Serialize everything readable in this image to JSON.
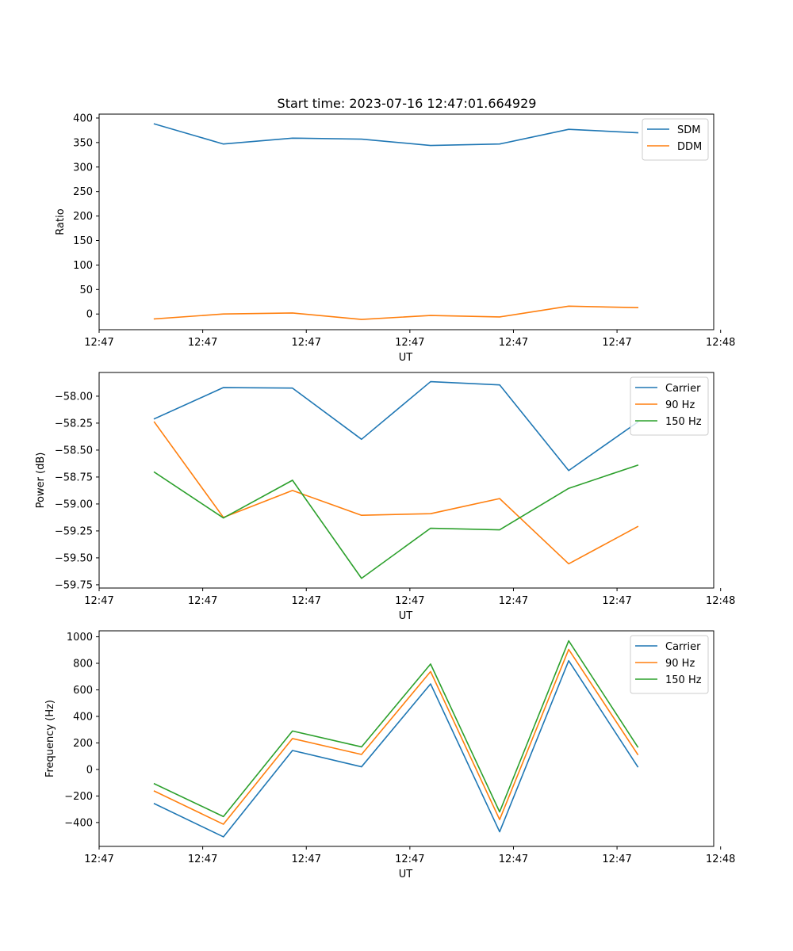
{
  "figure": {
    "title": "Start time: 2023-07-16 12:47:01.664929"
  },
  "chart_data": [
    {
      "type": "line",
      "title": "Start time: 2023-07-16 12:47:01.664929",
      "xlabel": "UT",
      "ylabel": "Ratio",
      "x": [
        1,
        2,
        3,
        4,
        5,
        6,
        7,
        8
      ],
      "xlim": [
        0.2,
        9.1
      ],
      "x_ticks": [
        0.2,
        1.7,
        3.2,
        4.7,
        6.2,
        7.7,
        9.2
      ],
      "x_tick_labels": [
        "12:47",
        "12:47",
        "12:47",
        "12:47",
        "12:47",
        "12:47",
        "12:48"
      ],
      "ylim": [
        -32,
        408
      ],
      "y_ticks": [
        0,
        50,
        100,
        150,
        200,
        250,
        300,
        350,
        400
      ],
      "y_tick_labels": [
        "0",
        "50",
        "100",
        "150",
        "200",
        "250",
        "300",
        "350",
        "400"
      ],
      "legend_position": "top-right",
      "series": [
        {
          "name": "SDM",
          "color": "#1f77b4",
          "values": [
            388,
            347,
            359,
            357,
            344,
            347,
            377,
            370
          ]
        },
        {
          "name": "DDM",
          "color": "#ff7f0e",
          "values": [
            -10,
            0,
            2,
            -11,
            -3,
            -6,
            16,
            13
          ]
        }
      ]
    },
    {
      "type": "line",
      "title": "",
      "xlabel": "UT",
      "ylabel": "Power (dB)",
      "x": [
        1,
        2,
        3,
        4,
        5,
        6,
        7,
        8
      ],
      "xlim": [
        0.2,
        9.1
      ],
      "x_ticks": [
        0.2,
        1.7,
        3.2,
        4.7,
        6.2,
        7.7,
        9.2
      ],
      "x_tick_labels": [
        "12:47",
        "12:47",
        "12:47",
        "12:47",
        "12:47",
        "12:47",
        "12:48"
      ],
      "ylim": [
        -59.78,
        -57.78
      ],
      "y_ticks": [
        -59.75,
        -59.5,
        -59.25,
        -59.0,
        -58.75,
        -58.5,
        -58.25,
        -58.0
      ],
      "y_tick_labels": [
        "−59.75",
        "−59.50",
        "−59.25",
        "−59.00",
        "−58.75",
        "−58.50",
        "−58.25",
        "−58.00"
      ],
      "legend_position": "top-right",
      "series": [
        {
          "name": "Carrier",
          "color": "#1f77b4",
          "values": [
            -58.21,
            -57.92,
            -57.925,
            -58.4,
            -57.865,
            -57.895,
            -58.69,
            -58.24
          ]
        },
        {
          "name": "90 Hz",
          "color": "#ff7f0e",
          "values": [
            -58.24,
            -59.125,
            -58.875,
            -59.105,
            -59.09,
            -58.95,
            -59.555,
            -59.21
          ]
        },
        {
          "name": "150 Hz",
          "color": "#2ca02c",
          "values": [
            -58.705,
            -59.13,
            -58.78,
            -59.69,
            -59.225,
            -59.24,
            -58.855,
            -58.64
          ]
        }
      ]
    },
    {
      "type": "line",
      "title": "",
      "xlabel": "UT",
      "ylabel": "Frequency (Hz)",
      "x": [
        1,
        2,
        3,
        4,
        5,
        6,
        7,
        8
      ],
      "xlim": [
        0.2,
        9.1
      ],
      "x_ticks": [
        0.2,
        1.7,
        3.2,
        4.7,
        6.2,
        7.7,
        9.2
      ],
      "x_tick_labels": [
        "12:47",
        "12:47",
        "12:47",
        "12:47",
        "12:47",
        "12:47",
        "12:48"
      ],
      "ylim": [
        -580,
        1045
      ],
      "y_ticks": [
        -400,
        -200,
        0,
        200,
        400,
        600,
        800,
        1000
      ],
      "y_tick_labels": [
        "−400",
        "−200",
        "0",
        "200",
        "400",
        "600",
        "800",
        "1000"
      ],
      "legend_position": "top-right",
      "series": [
        {
          "name": "Carrier",
          "color": "#1f77b4",
          "values": [
            -258,
            -508,
            143,
            20,
            645,
            -470,
            820,
            20
          ]
        },
        {
          "name": "90 Hz",
          "color": "#ff7f0e",
          "values": [
            -163,
            -413,
            233,
            113,
            738,
            -378,
            905,
            113
          ]
        },
        {
          "name": "150 Hz",
          "color": "#2ca02c",
          "values": [
            -108,
            -355,
            290,
            170,
            795,
            -320,
            970,
            170
          ]
        }
      ]
    }
  ]
}
